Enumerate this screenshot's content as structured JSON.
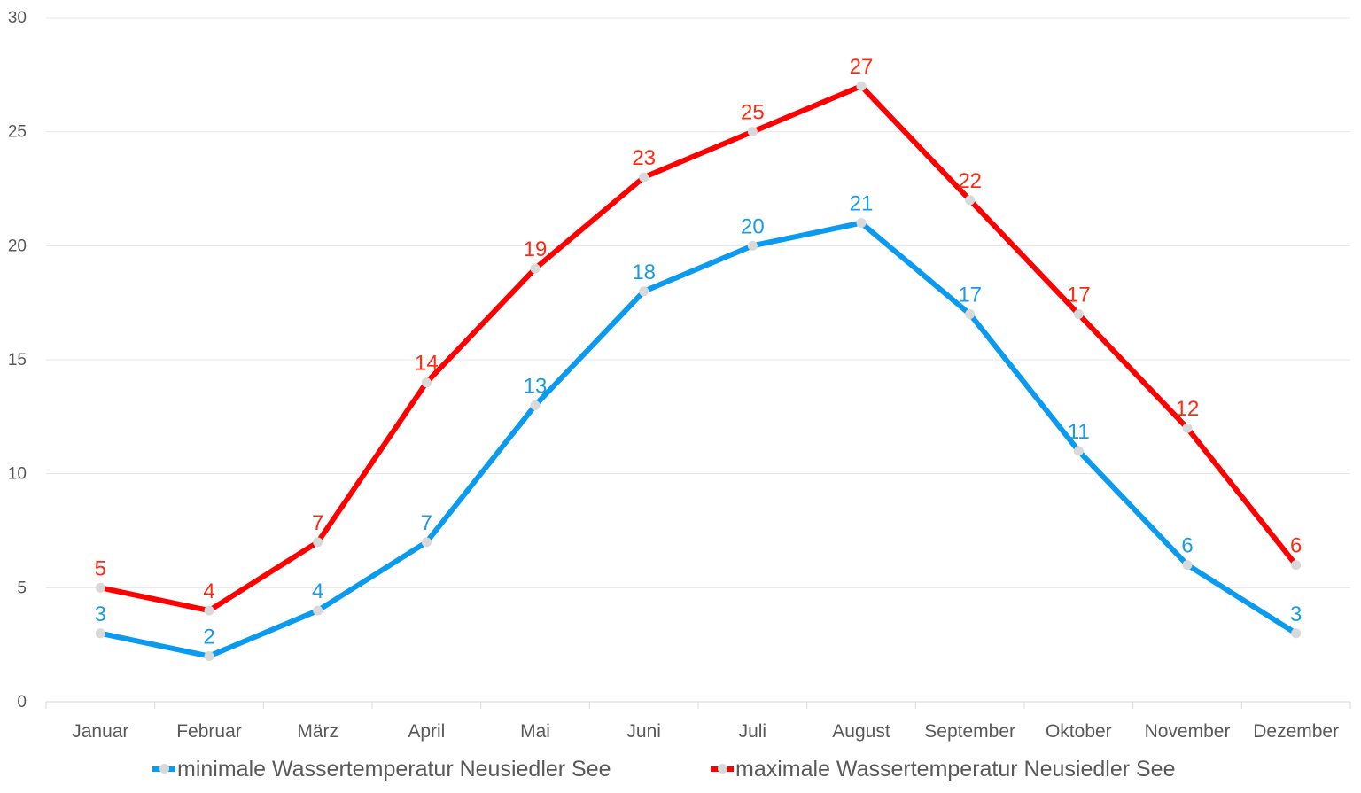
{
  "chart_data": {
    "type": "line",
    "categories": [
      "Januar",
      "Februar",
      "März",
      "April",
      "Mai",
      "Juni",
      "Juli",
      "August",
      "September",
      "Oktober",
      "November",
      "Dezember"
    ],
    "series": [
      {
        "name": "minimale Wassertemperatur Neusiedler See",
        "color": "#0a9aef",
        "label_color": "#1a9be8",
        "values": [
          3,
          2,
          4,
          7,
          13,
          18,
          20,
          21,
          17,
          11,
          6,
          3
        ]
      },
      {
        "name": "maximale Wassertemperatur Neusiedler See",
        "color": "#ff0000",
        "label_color": "#ff2a12",
        "values": [
          5,
          4,
          7,
          14,
          19,
          23,
          25,
          27,
          22,
          17,
          12,
          6
        ]
      }
    ],
    "yticks": [
      0,
      5,
      10,
      15,
      20,
      25,
      30
    ],
    "ylim": [
      0,
      30
    ],
    "grid": true,
    "marker_color": "#d9d9d9",
    "legend_position": "bottom",
    "title": "",
    "xlabel": "",
    "ylabel": ""
  }
}
